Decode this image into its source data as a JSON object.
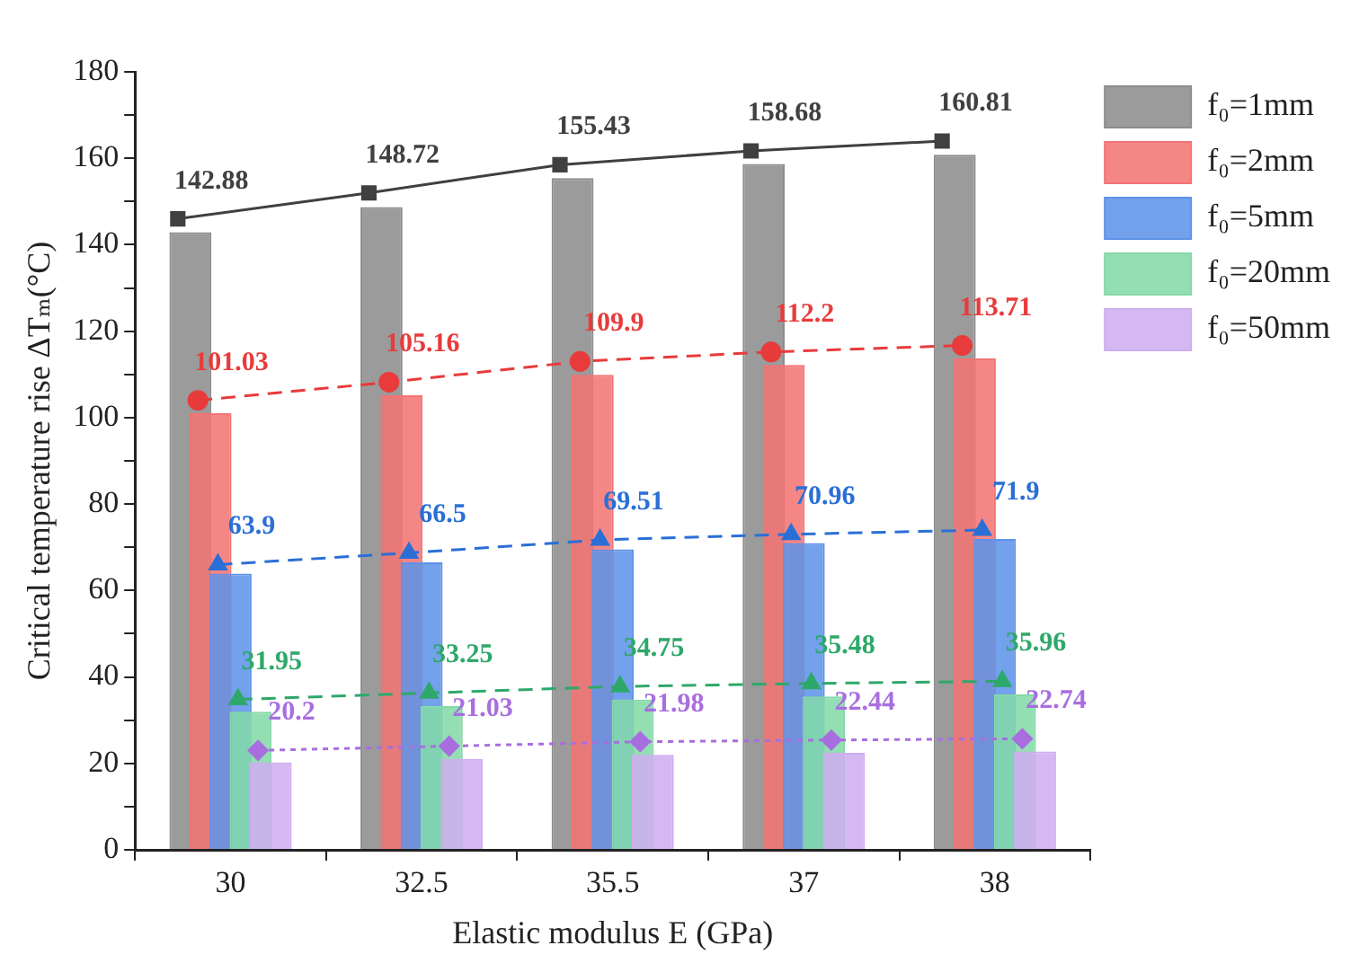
{
  "chart_data": {
    "type": "bar",
    "xlabel": "Elastic modulus E (GPa)",
    "ylabel": "Critical temperature rise ΔTₘ(°C)",
    "categories": [
      "30",
      "32.5",
      "35.5",
      "37",
      "38"
    ],
    "ylim": [
      0,
      180
    ],
    "yticks": [
      0,
      {
        "value": 10,
        "label": null
      },
      20,
      {
        "value": 30,
        "label": null
      },
      40,
      {
        "value": 50,
        "label": null
      },
      60,
      {
        "value": 70,
        "label": null
      },
      80,
      {
        "value": 90,
        "label": null
      },
      100,
      {
        "value": 110,
        "label": null
      },
      120,
      {
        "value": 130,
        "label": null
      },
      140,
      {
        "value": 150,
        "label": null
      },
      160,
      {
        "value": 170,
        "label": null
      },
      180
    ],
    "grid": false,
    "legend": "top right",
    "series": [
      {
        "name": "f₀=1mm",
        "color": "#8c8c8c",
        "values": [
          142.88,
          148.72,
          155.43,
          158.68,
          160.81
        ],
        "value_labels": [
          "142.88",
          "148.72",
          "155.43",
          "158.68",
          "160.81"
        ]
      },
      {
        "name": "f₀=2mm",
        "color": "#f27373",
        "values": [
          101.03,
          105.16,
          109.9,
          112.2,
          113.71
        ],
        "value_labels": [
          "101.03",
          "105.16",
          "109.9",
          "112.2",
          "113.71"
        ]
      },
      {
        "name": "f₀=5mm",
        "color": "#5d92e8",
        "values": [
          63.9,
          66.5,
          69.51,
          70.96,
          71.9
        ],
        "value_labels": [
          "63.9",
          "66.5",
          "69.51",
          "70.96",
          "71.9"
        ]
      },
      {
        "name": "f₀=20mm",
        "color": "#84d9a8",
        "values": [
          31.95,
          33.25,
          34.75,
          35.48,
          35.96
        ],
        "value_labels": [
          "31.95",
          "33.25",
          "34.75",
          "35.48",
          "35.96"
        ]
      },
      {
        "name": "f₀=50mm",
        "color": "#cfadf0",
        "values": [
          20.2,
          21.03,
          21.98,
          22.44,
          22.74
        ],
        "value_labels": [
          "20.2",
          "21.03",
          "21.98",
          "22.44",
          "22.74"
        ]
      },
      {
        "type": "line",
        "color": "#404040",
        "values": [
          146,
          152,
          158.5,
          161.7,
          164
        ],
        "marker": "square",
        "line_style": "solid"
      },
      {
        "type": "line",
        "color": "#e83b3b",
        "values": [
          104,
          108.2,
          113,
          115.2,
          116.7
        ],
        "marker": "circle",
        "line_style": "dashed"
      },
      {
        "type": "line",
        "color": "#2a6fd6",
        "values": [
          66,
          68.7,
          71.7,
          73,
          74
        ],
        "marker": "triangle",
        "line_style": "dashed"
      },
      {
        "type": "line",
        "color": "#2ea86a",
        "values": [
          34.8,
          36.3,
          37.8,
          38.5,
          39
        ],
        "marker": "triangle",
        "line_style": "dashed"
      },
      {
        "type": "line",
        "color": "#a86ee0",
        "values": [
          23,
          24,
          25,
          25.4,
          25.7
        ],
        "marker": "diamond",
        "line_style": "dotted"
      }
    ]
  }
}
